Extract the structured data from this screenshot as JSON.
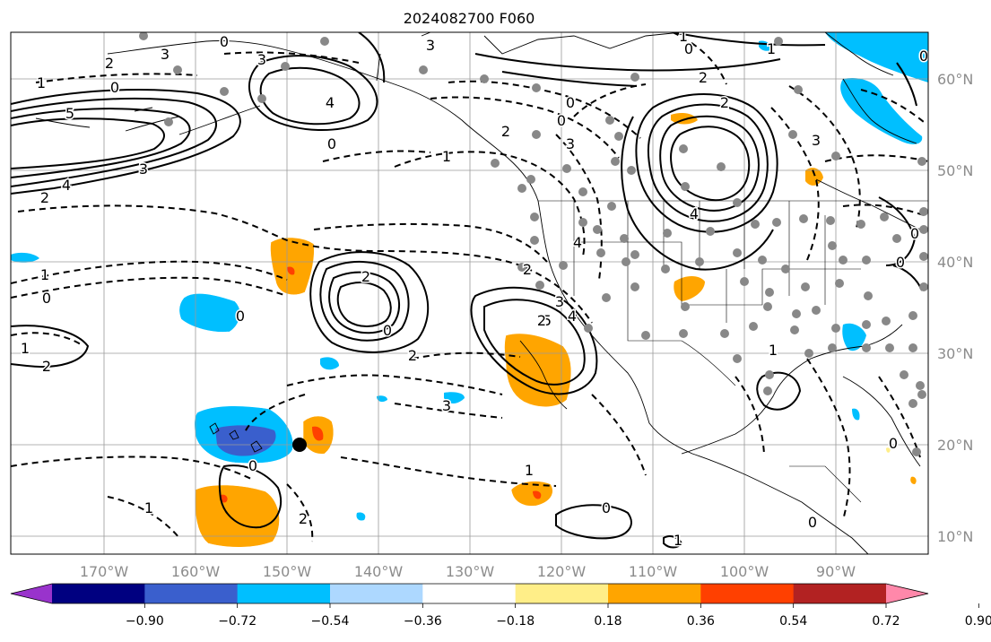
{
  "title": "2024082700 F060",
  "longitude_labels": [
    "170°W",
    "160°W",
    "150°W",
    "140°W",
    "130°W",
    "120°W",
    "110°W",
    "100°W",
    "90°W"
  ],
  "latitude_labels": [
    "60°N",
    "50°N",
    "40°N",
    "30°N",
    "20°N",
    "10°N"
  ],
  "colorbar": {
    "tick_labels": [
      "−0.90",
      "−0.72",
      "−0.54",
      "−0.36",
      "−0.18",
      "0.18",
      "0.36",
      "0.54",
      "0.72",
      "0.90"
    ],
    "colors": [
      "#9933cc",
      "#000080",
      "#3a5fcd",
      "#00bfff",
      "#add8ff",
      "#ffffff",
      "#ffee88",
      "#ffa500",
      "#ff4000",
      "#b22222",
      "#ff88aa"
    ]
  },
  "contour_labels": [
    {
      "text": "2"
    },
    {
      "text": "1"
    },
    {
      "text": "0"
    },
    {
      "text": "5"
    },
    {
      "text": "4"
    },
    {
      "text": "3"
    },
    {
      "text": "2"
    },
    {
      "text": "1"
    },
    {
      "text": "0"
    },
    {
      "text": "1"
    },
    {
      "text": "2"
    },
    {
      "text": "3"
    },
    {
      "text": "0"
    },
    {
      "text": "3"
    },
    {
      "text": "4"
    },
    {
      "text": "3"
    },
    {
      "text": "2"
    },
    {
      "text": "0"
    },
    {
      "text": "2"
    },
    {
      "text": "3"
    },
    {
      "text": "5"
    },
    {
      "text": "4"
    },
    {
      "text": "3"
    },
    {
      "text": "2"
    },
    {
      "text": "4"
    },
    {
      "text": "1"
    },
    {
      "text": "2"
    },
    {
      "text": "1"
    },
    {
      "text": "0"
    },
    {
      "text": "2"
    },
    {
      "text": "0"
    },
    {
      "text": "1"
    },
    {
      "text": "0"
    },
    {
      "text": "2"
    },
    {
      "text": "2"
    },
    {
      "text": "0"
    },
    {
      "text": "0"
    },
    {
      "text": "2"
    },
    {
      "text": "1"
    },
    {
      "text": "0"
    },
    {
      "text": "0"
    },
    {
      "text": "1"
    },
    {
      "text": "1"
    },
    {
      "text": "0"
    },
    {
      "text": "0"
    },
    {
      "text": "0"
    },
    {
      "text": "0"
    },
    {
      "text": "0"
    },
    {
      "text": "1"
    },
    {
      "text": "3"
    },
    {
      "text": "4"
    },
    {
      "text": "3"
    }
  ]
}
